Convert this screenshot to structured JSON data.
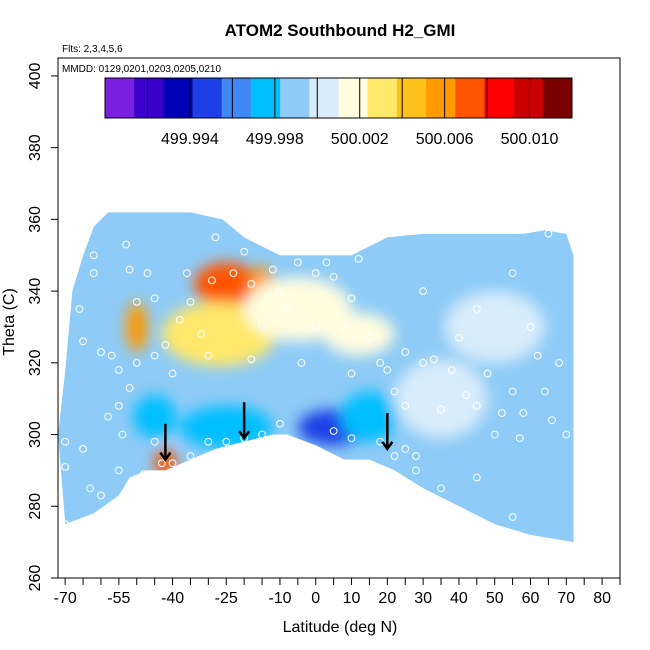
{
  "chart_data": {
    "type": "heatmap",
    "title": "ATOM2 Southbound H2_GMI",
    "notes": [
      "Flts: 2,3,4,5,6",
      "MMDD: 0129,0201,0203,0205,0210"
    ],
    "xlabel": "Latitude (deg N)",
    "ylabel": "Theta (C)",
    "xlim": [
      -72,
      85
    ],
    "ylim": [
      260,
      405
    ],
    "x_ticks": [
      -70,
      -65,
      -60,
      -55,
      -50,
      -45,
      -40,
      -35,
      -30,
      -25,
      -20,
      -15,
      -10,
      -5,
      0,
      5,
      10,
      15,
      20,
      25,
      30,
      35,
      40,
      45,
      50,
      55,
      60,
      65,
      70,
      75,
      80,
      85
    ],
    "x_tick_labels": [
      "-70",
      "-55",
      "-40",
      "-25",
      "-10",
      "0",
      "10",
      "20",
      "30",
      "40",
      "50",
      "60",
      "70",
      "80"
    ],
    "x_tick_label_values": [
      -70,
      -55,
      -40,
      -25,
      -10,
      0,
      10,
      20,
      30,
      40,
      50,
      60,
      70,
      80
    ],
    "y_ticks": [
      260,
      280,
      300,
      320,
      340,
      360,
      380,
      400
    ],
    "y_tick_labels": [
      "260",
      "280",
      "300",
      "320",
      "340",
      "360",
      "380",
      "400"
    ],
    "colorbar": {
      "range": [
        499.99,
        500.012
      ],
      "tick_values": [
        499.994,
        499.998,
        500.002,
        500.006,
        500.01
      ],
      "tick_labels": [
        "499.994",
        "499.998",
        "500.002",
        "500.006",
        "500.010"
      ],
      "segment_edges": [
        499.99,
        499.992,
        499.994,
        499.996,
        499.998,
        500.0,
        500.002,
        500.004,
        500.006,
        500.008,
        500.01,
        500.012
      ],
      "colors": [
        "#7b1fe0",
        "#3a00cc",
        "#0000b5",
        "#1e3fe6",
        "#3f88f5",
        "#00bfff",
        "#8ecbf6",
        "#d8ecfb",
        "#fffde0",
        "#ffe86a",
        "#ffc21a",
        "#ff9a00",
        "#ff5500",
        "#ff0000",
        "#c80000",
        "#7a0000"
      ]
    },
    "field": {
      "background": 499.999,
      "lower_boundary": [
        [
          -70,
          275
        ],
        [
          -62,
          278
        ],
        [
          -55,
          283
        ],
        [
          -52,
          288
        ],
        [
          -47,
          290
        ],
        [
          -42,
          290
        ],
        [
          -35,
          293
        ],
        [
          -28,
          296
        ],
        [
          -20,
          298
        ],
        [
          -12,
          300
        ],
        [
          -8,
          300
        ],
        [
          0,
          297
        ],
        [
          8,
          293
        ],
        [
          15,
          293
        ],
        [
          22,
          290
        ],
        [
          30,
          285
        ],
        [
          40,
          280
        ],
        [
          50,
          275
        ],
        [
          60,
          272
        ],
        [
          72,
          270
        ]
      ],
      "upper_boundary": [
        [
          -72,
          300
        ],
        [
          -70,
          318
        ],
        [
          -68,
          340
        ],
        [
          -65,
          350
        ],
        [
          -62,
          358
        ],
        [
          -58,
          362
        ],
        [
          -45,
          362
        ],
        [
          -35,
          362
        ],
        [
          -26,
          360
        ],
        [
          -20,
          355
        ],
        [
          -10,
          350
        ],
        [
          0,
          350
        ],
        [
          10,
          350
        ],
        [
          20,
          355
        ],
        [
          30,
          356
        ],
        [
          45,
          356
        ],
        [
          58,
          356
        ],
        [
          64,
          357
        ],
        [
          70,
          356
        ],
        [
          72,
          350
        ]
      ],
      "anomalies": [
        {
          "lat": -25,
          "theta": 342,
          "value": 500.007,
          "rx": 9,
          "ry": 6
        },
        {
          "lat": -15,
          "theta": 338,
          "value": 500.006,
          "rx": 4,
          "ry": 9
        },
        {
          "lat": -50,
          "theta": 330,
          "value": 500.006,
          "rx": 3,
          "ry": 7
        },
        {
          "lat": -42,
          "theta": 292,
          "value": 500.007,
          "rx": 3,
          "ry": 4
        },
        {
          "lat": -27,
          "theta": 328,
          "value": 500.003,
          "rx": 16,
          "ry": 9
        },
        {
          "lat": -5,
          "theta": 335,
          "value": 500.002,
          "rx": 15,
          "ry": 9
        },
        {
          "lat": 12,
          "theta": 328,
          "value": 500.002,
          "rx": 10,
          "ry": 6
        },
        {
          "lat": -25,
          "theta": 302,
          "value": 499.997,
          "rx": 13,
          "ry": 6
        },
        {
          "lat": 5,
          "theta": 302,
          "value": 499.995,
          "rx": 10,
          "ry": 5
        },
        {
          "lat": 15,
          "theta": 305,
          "value": 499.997,
          "rx": 8,
          "ry": 7
        },
        {
          "lat": -45,
          "theta": 305,
          "value": 499.997,
          "rx": 6,
          "ry": 6
        },
        {
          "lat": 35,
          "theta": 310,
          "value": 500.0,
          "rx": 13,
          "ry": 11
        },
        {
          "lat": 50,
          "theta": 330,
          "value": 500.0,
          "rx": 14,
          "ry": 10
        }
      ]
    },
    "observations": [
      [
        -70,
        275
      ],
      [
        -70,
        291
      ],
      [
        -70,
        298
      ],
      [
        -70,
        331
      ],
      [
        -66,
        335
      ],
      [
        -60,
        323
      ],
      [
        -57,
        322
      ],
      [
        -55,
        290
      ],
      [
        -54,
        300
      ],
      [
        -55,
        308
      ],
      [
        -52,
        313
      ],
      [
        -50,
        320
      ],
      [
        -50,
        337
      ],
      [
        -53,
        353
      ],
      [
        -52,
        346
      ],
      [
        -47,
        345
      ],
      [
        -45,
        298
      ],
      [
        -45,
        322
      ],
      [
        -43,
        292
      ],
      [
        -40,
        292
      ],
      [
        -40,
        317
      ],
      [
        -38,
        332
      ],
      [
        -35,
        337
      ],
      [
        -32,
        328
      ],
      [
        -30,
        322
      ],
      [
        -29,
        343
      ],
      [
        -25,
        298
      ],
      [
        -23,
        345
      ],
      [
        -20,
        351
      ],
      [
        -18,
        321
      ],
      [
        -15,
        330
      ],
      [
        -12,
        346
      ],
      [
        -10,
        340
      ],
      [
        -8,
        335
      ],
      [
        -5,
        348
      ],
      [
        -3,
        352
      ],
      [
        0,
        345
      ],
      [
        3,
        348
      ],
      [
        5,
        344
      ],
      [
        8,
        330
      ],
      [
        10,
        338
      ],
      [
        12,
        349
      ],
      [
        15,
        327
      ],
      [
        18,
        320
      ],
      [
        22,
        312
      ],
      [
        25,
        308
      ],
      [
        25,
        296
      ],
      [
        28,
        294
      ],
      [
        30,
        320
      ],
      [
        33,
        321
      ],
      [
        35,
        307
      ],
      [
        38,
        318
      ],
      [
        40,
        327
      ],
      [
        42,
        311
      ],
      [
        45,
        288
      ],
      [
        45,
        308
      ],
      [
        48,
        317
      ],
      [
        50,
        300
      ],
      [
        52,
        306
      ],
      [
        55,
        312
      ],
      [
        57,
        299
      ],
      [
        58,
        306
      ],
      [
        60,
        330
      ],
      [
        62,
        322
      ],
      [
        64,
        312
      ],
      [
        66,
        304
      ],
      [
        68,
        320
      ],
      [
        70,
        300
      ],
      [
        55,
        277
      ],
      [
        50,
        273
      ],
      [
        35,
        285
      ],
      [
        28,
        290
      ],
      [
        22,
        294
      ],
      [
        18,
        298
      ],
      [
        10,
        299
      ],
      [
        5,
        301
      ],
      [
        -10,
        303
      ],
      [
        -15,
        300
      ],
      [
        -20,
        299
      ],
      [
        -30,
        298
      ],
      [
        -35,
        294
      ],
      [
        -48,
        289
      ],
      [
        -60,
        283
      ],
      [
        -63,
        285
      ],
      [
        -65,
        296
      ],
      [
        -58,
        305
      ],
      [
        -62,
        345
      ],
      [
        -62,
        350
      ],
      [
        -65,
        326
      ],
      [
        10,
        317
      ],
      [
        20,
        318
      ],
      [
        25,
        323
      ],
      [
        0,
        330
      ],
      [
        -4,
        320
      ],
      [
        30,
        340
      ],
      [
        45,
        335
      ],
      [
        55,
        345
      ],
      [
        65,
        356
      ],
      [
        -28,
        355
      ],
      [
        -18,
        342
      ],
      [
        -36,
        345
      ],
      [
        -45,
        338
      ],
      [
        -42,
        325
      ],
      [
        -55,
        318
      ]
    ],
    "arrows": [
      [
        -42,
        295
      ],
      [
        -20,
        301
      ],
      [
        20,
        298
      ]
    ],
    "arrow_length_theta": 8
  }
}
